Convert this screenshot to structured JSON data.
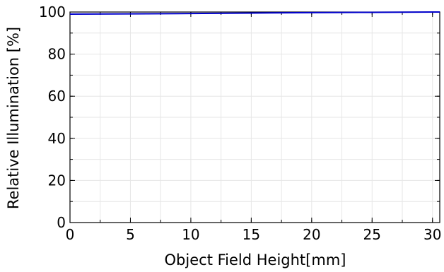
{
  "chart_data": {
    "type": "line",
    "xlabel": "Object Field Height[mm]",
    "ylabel": "Relative Illumination [%]",
    "xlim": [
      0,
      30.6
    ],
    "ylim": [
      0,
      100
    ],
    "x_ticks": [
      0,
      5,
      10,
      15,
      20,
      25,
      30
    ],
    "y_ticks": [
      0,
      20,
      40,
      60,
      80,
      100
    ],
    "x_minor_step": 2.5,
    "y_minor_step": 10,
    "grid": true,
    "series": [
      {
        "color": "#0000cc",
        "x": [
          0,
          5,
          10,
          15,
          20,
          25,
          30,
          30.6
        ],
        "y": [
          99.0,
          99.1,
          99.3,
          99.5,
          99.7,
          99.85,
          100.0,
          100.0
        ]
      }
    ]
  }
}
